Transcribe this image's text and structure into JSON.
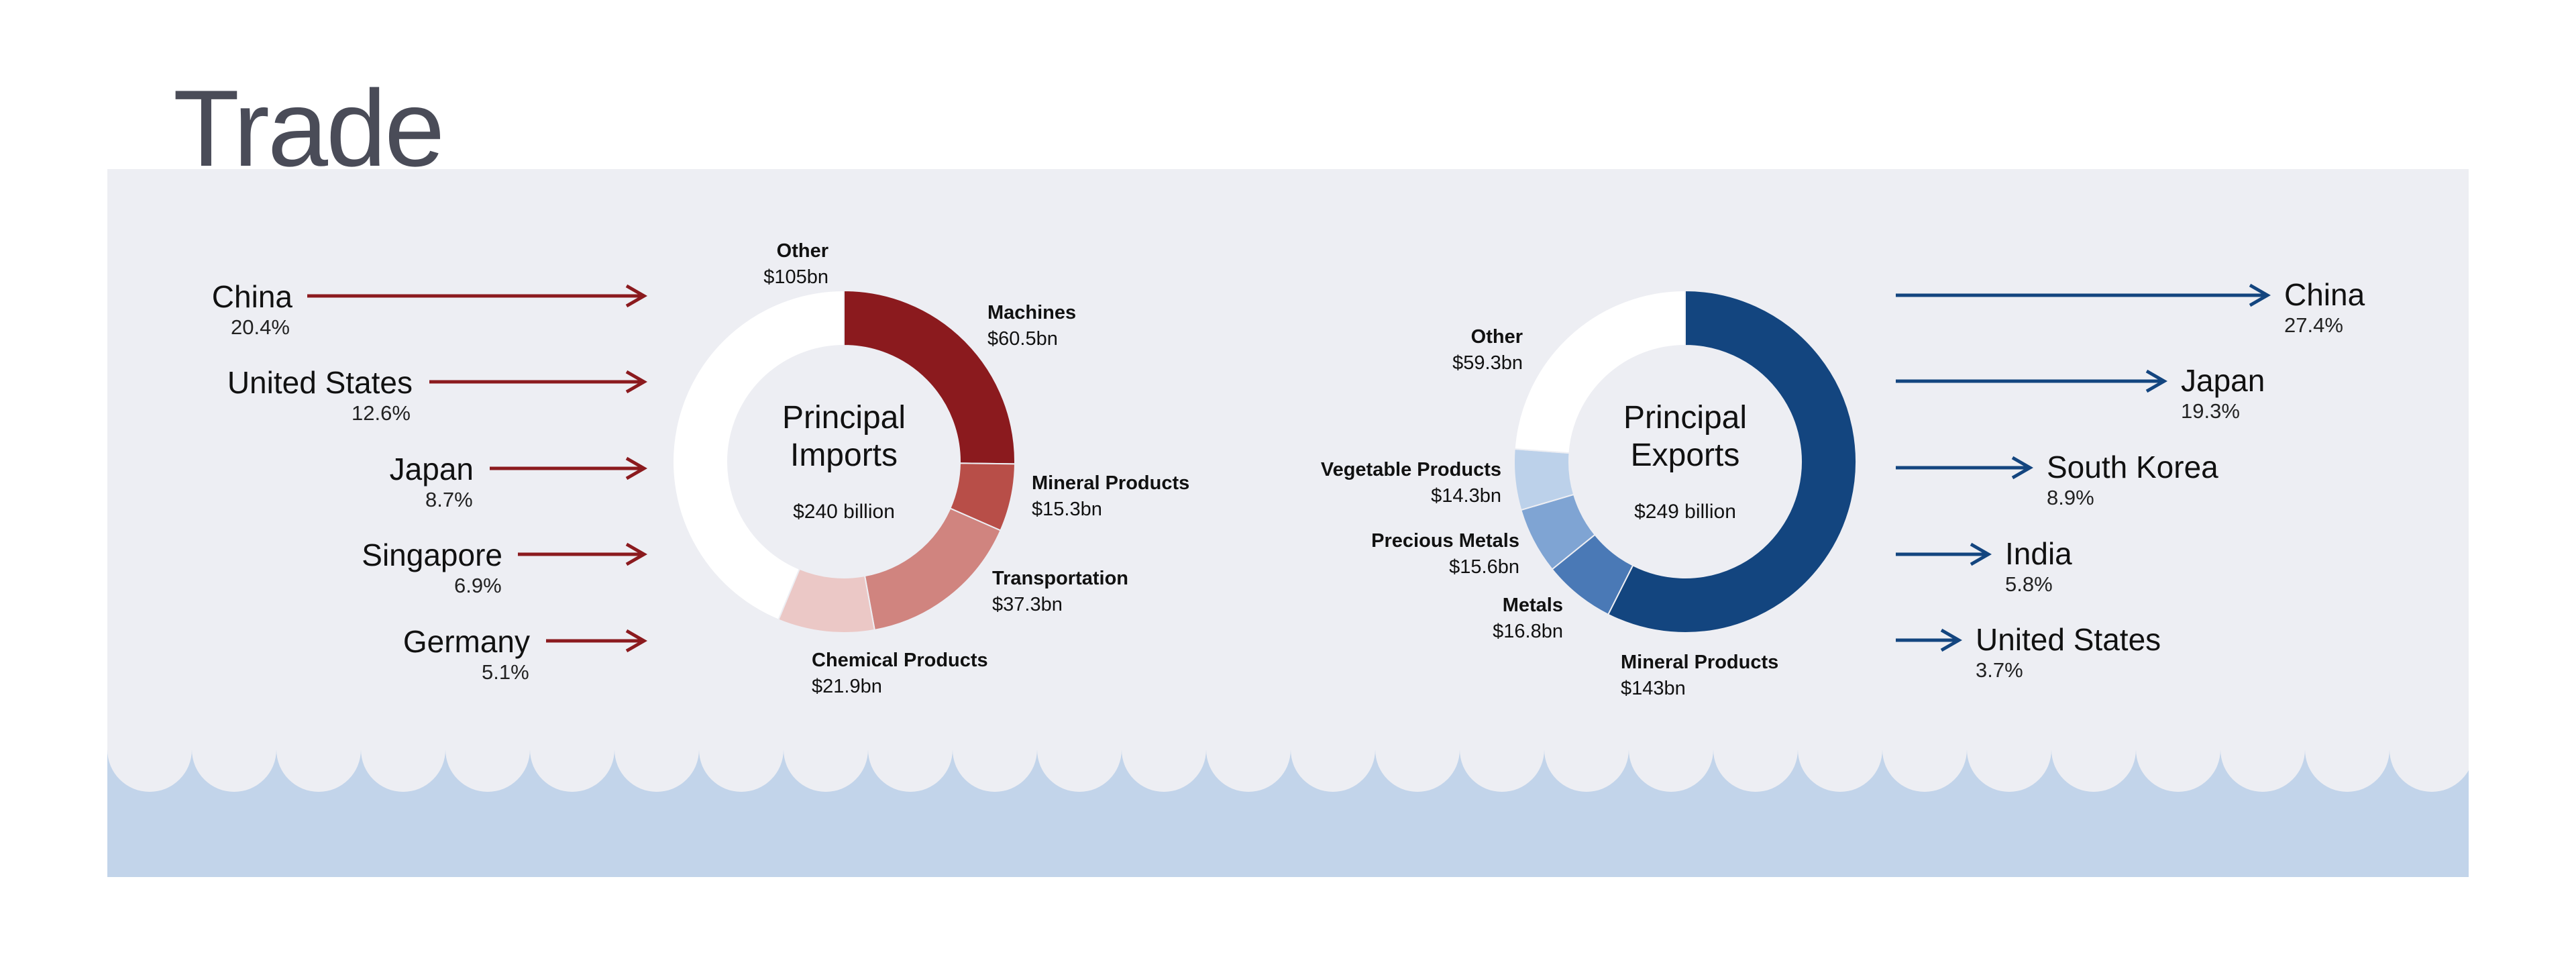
{
  "title": "Trade",
  "colors": {
    "panel": "#edeef3",
    "water": "#c2d4ea",
    "imports_arrow": "#8b1a1e",
    "exports_arrow": "#13457f"
  },
  "imports": {
    "title_line1": "Principal",
    "title_line2": "Imports",
    "total": "$240 billion",
    "partners": [
      {
        "name": "China",
        "pct": "20.4%"
      },
      {
        "name": "United States",
        "pct": "12.6%"
      },
      {
        "name": "Japan",
        "pct": "8.7%"
      },
      {
        "name": "Singapore",
        "pct": "6.9%"
      },
      {
        "name": "Germany",
        "pct": "5.1%"
      }
    ]
  },
  "exports": {
    "title_line1": "Principal",
    "title_line2": "Exports",
    "total": "$249 billion",
    "partners": [
      {
        "name": "China",
        "pct": "27.4%"
      },
      {
        "name": "Japan",
        "pct": "19.3%"
      },
      {
        "name": "South Korea",
        "pct": "8.9%"
      },
      {
        "name": "India",
        "pct": "5.8%"
      },
      {
        "name": "United States",
        "pct": "3.7%"
      }
    ]
  },
  "chart_data": [
    {
      "type": "pie",
      "title": "Principal Imports",
      "total": "$240 billion",
      "slices": [
        {
          "label": "Machines",
          "value": 60.5,
          "display": "$60.5bn",
          "color": "#8b1a1e"
        },
        {
          "label": "Mineral Products",
          "value": 15.3,
          "display": "$15.3bn",
          "color": "#b84e48"
        },
        {
          "label": "Transportation",
          "value": 37.3,
          "display": "$37.3bn",
          "color": "#d0847f"
        },
        {
          "label": "Chemical Products",
          "value": 21.9,
          "display": "$21.9bn",
          "color": "#ebc8c6"
        },
        {
          "label": "Other",
          "value": 105,
          "display": "$105bn",
          "color": "#ffffff"
        }
      ]
    },
    {
      "type": "pie",
      "title": "Principal Exports",
      "total": "$249 billion",
      "slices": [
        {
          "label": "Mineral Products",
          "value": 143,
          "display": "$143bn",
          "color": "#13457f"
        },
        {
          "label": "Metals",
          "value": 16.8,
          "display": "$16.8bn",
          "color": "#4a79b6"
        },
        {
          "label": "Precious Metals",
          "value": 15.6,
          "display": "$15.6bn",
          "color": "#7fa4d3"
        },
        {
          "label": "Vegetable Products",
          "value": 14.3,
          "display": "$14.3bn",
          "color": "#bcd1ea"
        },
        {
          "label": "Other",
          "value": 59.3,
          "display": "$59.3bn",
          "color": "#ffffff"
        }
      ]
    }
  ]
}
